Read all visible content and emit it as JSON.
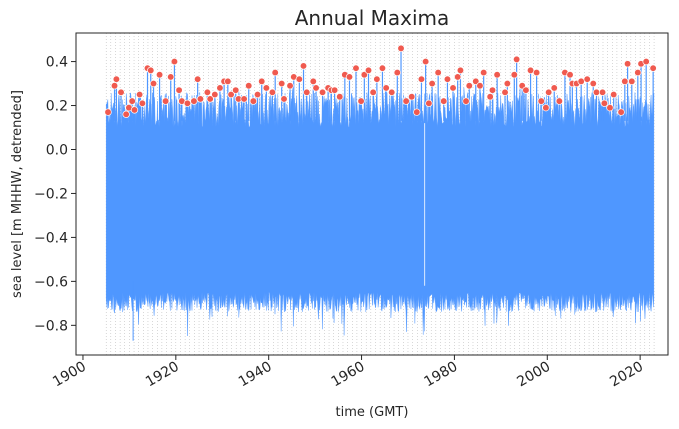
{
  "chart_data": {
    "type": "scatter",
    "title": "Annual Maxima",
    "xlabel": "time (GMT)",
    "ylabel": "sea level [m MHHW, detrended]",
    "x_ticks": [
      "1900",
      "1920",
      "1940",
      "1960",
      "1980",
      "2000",
      "2020"
    ],
    "y_ticks": [
      "−0.8",
      "−0.6",
      "−0.4",
      "−0.2",
      "0.0",
      "0.2",
      "0.4"
    ],
    "xlim": [
      1898.5,
      2026.0
    ],
    "ylim": [
      -0.935,
      0.53
    ],
    "grid": "vertical dotted lines at each year",
    "colors": {
      "series": "#4f97ff",
      "maxima": "#f05a4f",
      "maxima_edge": "#ffffff",
      "grid": "#b0b0b0",
      "axes": "#262626"
    },
    "series": [
      {
        "kind": "hourly sea level (filled envelope)",
        "x_range": [
          1905.0,
          2023.0
        ],
        "typical_band": [
          -0.68,
          0.18
        ],
        "min": -0.87,
        "max": 0.46
      },
      {
        "kind": "annual maxima",
        "x": [
          1905.4,
          1906.8,
          1907.2,
          1908.2,
          1909.3,
          1909.9,
          1910.6,
          1911.1,
          1912.2,
          1912.8,
          1913.9,
          1914.6,
          1915.2,
          1916.5,
          1917.8,
          1918.9,
          1919.7,
          1920.7,
          1921.3,
          1922.5,
          1923.9,
          1924.7,
          1925.3,
          1926.8,
          1927.4,
          1928.4,
          1929.5,
          1930.4,
          1931.2,
          1931.9,
          1932.9,
          1933.5,
          1934.7,
          1935.7,
          1936.7,
          1937.6,
          1938.5,
          1939.5,
          1940.8,
          1941.4,
          1942.8,
          1943.3,
          1944.6,
          1945.4,
          1946.6,
          1947.5,
          1948.2,
          1949.6,
          1950.2,
          1951.6,
          1952.8,
          1953.5,
          1954.2,
          1955.3,
          1956.4,
          1957.4,
          1958.8,
          1959.9,
          1960.6,
          1961.5,
          1962.5,
          1963.3,
          1964.5,
          1965.3,
          1966.5,
          1967.7,
          1968.5,
          1969.6,
          1970.8,
          1971.9,
          1972.9,
          1973.8,
          1974.5,
          1975.2,
          1976.5,
          1977.7,
          1978.5,
          1979.7,
          1980.7,
          1981.3,
          1982.5,
          1983.2,
          1984.6,
          1985.5,
          1986.3,
          1987.7,
          1988.2,
          1989.2,
          1990.9,
          1991.4,
          1992.9,
          1993.4,
          1994.6,
          1995.4,
          1996.4,
          1997.7,
          1998.7,
          1999.7,
          2000.3,
          2001.5,
          2002.6,
          2003.8,
          2004.9,
          2005.4,
          2006.3,
          2007.3,
          2008.6,
          2009.9,
          2010.6,
          2011.9,
          2012.3,
          2013.5,
          2014.3,
          2015.9,
          2016.7,
          2017.3,
          2018.2,
          2019.5,
          2020.2,
          2021.3,
          2022.8
        ],
        "y": [
          0.17,
          0.29,
          0.32,
          0.26,
          0.16,
          0.19,
          0.22,
          0.18,
          0.25,
          0.21,
          0.37,
          0.36,
          0.3,
          0.34,
          0.22,
          0.33,
          0.4,
          0.27,
          0.22,
          0.21,
          0.22,
          0.32,
          0.23,
          0.26,
          0.23,
          0.25,
          0.28,
          0.31,
          0.31,
          0.25,
          0.27,
          0.23,
          0.23,
          0.29,
          0.22,
          0.25,
          0.31,
          0.28,
          0.26,
          0.35,
          0.3,
          0.23,
          0.29,
          0.33,
          0.32,
          0.38,
          0.26,
          0.31,
          0.28,
          0.26,
          0.28,
          0.27,
          0.27,
          0.24,
          0.34,
          0.33,
          0.37,
          0.22,
          0.34,
          0.36,
          0.26,
          0.32,
          0.37,
          0.28,
          0.26,
          0.35,
          0.46,
          0.22,
          0.24,
          0.17,
          0.32,
          0.4,
          0.21,
          0.3,
          0.35,
          0.22,
          0.32,
          0.28,
          0.33,
          0.36,
          0.22,
          0.29,
          0.31,
          0.29,
          0.35,
          0.24,
          0.27,
          0.34,
          0.26,
          0.3,
          0.34,
          0.41,
          0.29,
          0.27,
          0.36,
          0.35,
          0.22,
          0.19,
          0.26,
          0.28,
          0.22,
          0.35,
          0.34,
          0.3,
          0.3,
          0.31,
          0.32,
          0.3,
          0.26,
          0.26,
          0.21,
          0.19,
          0.25,
          0.17,
          0.31,
          0.39,
          0.31,
          0.35,
          0.39,
          0.4,
          0.37
        ]
      }
    ]
  }
}
